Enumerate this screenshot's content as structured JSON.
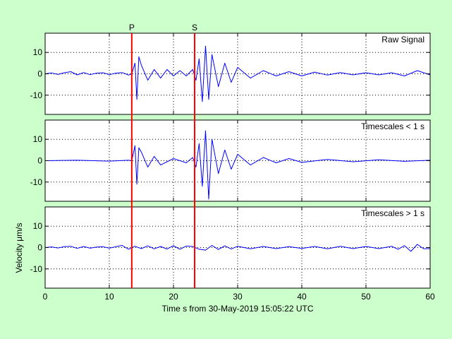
{
  "chart_data": {
    "type": "line",
    "xlabel": "Time s from 30-May-2019 15:05:22 UTC",
    "ylabel": "Velocity μm/s",
    "xlim": [
      0,
      60
    ],
    "xticks": [
      0,
      10,
      20,
      30,
      40,
      50,
      60
    ],
    "grid": true,
    "colors": {
      "signal": "#0000ff",
      "markers": "#ff0000",
      "background": "#ccffcc",
      "axes_face": "#ffffff"
    },
    "markers": [
      {
        "label": "P",
        "x": 13.5
      },
      {
        "label": "S",
        "x": 23.3
      }
    ],
    "panels": [
      {
        "label": "Raw Signal",
        "ylim": [
          -19,
          19
        ],
        "yticks": [
          10,
          0,
          -10
        ],
        "tick_labels": [
          "10",
          "0",
          "-10"
        ],
        "series": {
          "x": [
            0,
            1,
            2,
            3,
            4,
            5,
            6,
            7,
            8,
            9,
            10,
            11,
            12,
            13,
            13.5,
            14,
            14.3,
            14.6,
            15,
            16,
            17,
            18,
            19,
            20,
            21,
            22,
            23,
            23.5,
            24,
            24.5,
            25,
            25.5,
            26,
            27,
            28,
            29,
            30,
            32,
            34,
            36,
            38,
            40,
            42,
            44,
            46,
            48,
            50,
            52,
            54,
            56,
            58,
            60
          ],
          "values": [
            0,
            0.4,
            -0.3,
            0.5,
            1,
            -0.5,
            0.6,
            -0.4,
            0.3,
            0.5,
            -0.4,
            0.3,
            0.6,
            -0.6,
            0,
            5,
            -12,
            8,
            4,
            -3,
            2,
            -2,
            2,
            -1,
            1.5,
            -1,
            2,
            -3,
            7,
            -13,
            13,
            -12,
            9,
            -6,
            5,
            -4,
            3,
            -2,
            1.5,
            -1,
            1,
            -1,
            0.8,
            -0.6,
            0.6,
            -0.5,
            0.5,
            -0.5,
            0.5,
            -1,
            1.5,
            -0.5
          ]
        }
      },
      {
        "label": "Timescales < 1 s",
        "ylim": [
          -19,
          19
        ],
        "yticks": [
          10,
          0,
          -10
        ],
        "tick_labels": [
          "10",
          "0",
          "-10"
        ],
        "series": {
          "x": [
            0,
            5,
            10,
            13,
            13.5,
            14,
            14.3,
            14.6,
            15,
            16,
            17,
            18,
            20,
            22,
            23,
            23.5,
            24,
            24.5,
            25,
            25.5,
            26,
            27,
            28,
            29,
            30,
            32,
            34,
            36,
            38,
            40,
            44,
            48,
            52,
            56,
            60
          ],
          "values": [
            0,
            0.2,
            -0.2,
            0.2,
            0,
            7,
            -11,
            6,
            4,
            -3,
            2,
            -2,
            1,
            -1,
            1.5,
            -3,
            8,
            -12,
            14,
            -18,
            10,
            -6,
            5,
            -4,
            3,
            -2,
            1.5,
            -1,
            1,
            -0.8,
            0.6,
            -0.5,
            0.4,
            -0.3,
            0.2
          ]
        }
      },
      {
        "label": "Timescales > 1 s",
        "ylim": [
          -19,
          19
        ],
        "yticks": [
          10,
          0,
          -10
        ],
        "tick_labels": [
          "10",
          "0",
          "-10"
        ],
        "series": {
          "x": [
            0,
            1,
            2,
            3,
            4,
            5,
            6,
            7,
            8,
            9,
            10,
            11,
            12,
            13,
            14,
            15,
            16,
            17,
            18,
            19,
            20,
            21,
            22,
            23,
            24,
            25,
            26,
            27,
            28,
            29,
            30,
            32,
            34,
            36,
            38,
            40,
            42,
            44,
            46,
            48,
            50,
            52,
            54,
            55,
            56,
            57,
            58,
            59,
            60
          ],
          "values": [
            0,
            0.3,
            -0.2,
            0.4,
            0.6,
            -0.4,
            0.5,
            -0.3,
            0.2,
            0.4,
            -0.3,
            0.4,
            1,
            -0.8,
            0.6,
            -0.5,
            0.8,
            -0.6,
            0.5,
            -0.7,
            0.9,
            -0.8,
            0.7,
            0.5,
            -0.8,
            -1.2,
            1.0,
            -0.9,
            0.8,
            -0.7,
            0.6,
            -0.6,
            0.5,
            -0.5,
            0.4,
            -0.4,
            0.5,
            -0.6,
            0.6,
            -0.5,
            0.5,
            -0.5,
            0.6,
            -0.8,
            0.9,
            -1.8,
            1.5,
            -0.6,
            -0.5
          ]
        }
      }
    ]
  }
}
